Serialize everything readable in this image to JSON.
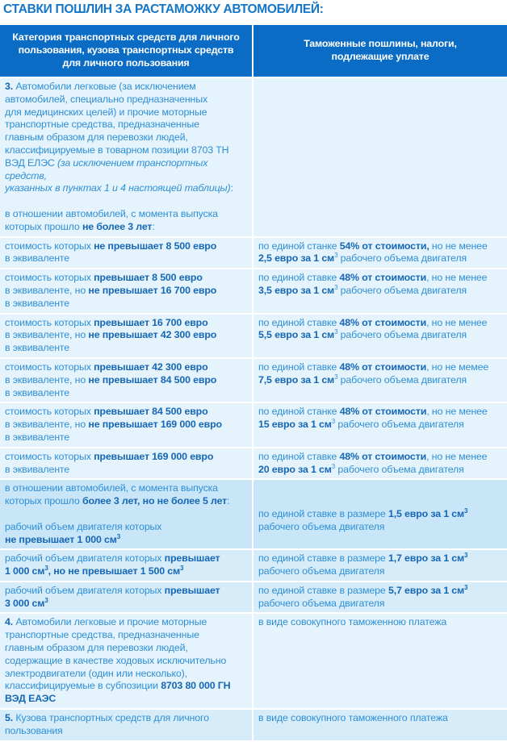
{
  "title": "СТАВКИ ПОШЛИН ЗА РАСТАМОЖКУ АВТОМОБИЛЕЙ:",
  "colors": {
    "header_bg": "#0b6cc5",
    "text": "#2f8fd6",
    "bold_text": "#1667b5",
    "row_light": "#e4f3fc",
    "row_dark": "#c9e6f8"
  },
  "header": {
    "col1": "Категория транспортных средств для личного\nпользования, кузова транспортных средств\nдля личного пользования",
    "col2": "Таможенные пошлины, налоги,\nподлежащие уплате"
  },
  "rows": [
    {
      "shade": "light",
      "left": [
        {
          "t": "3.",
          "s": "b"
        },
        {
          "t": " Автомобили легковые (за исключением\nавтомобилей, специально предназначенных\nдля медицинских целей) и прочие моторные\nтранспортные средства, предназначенные\nглавным образом для перевозки людей,\nклассифицируемые в товарном позиции 8703 ТН\nВЭД ЕЛЭС "
        },
        {
          "t": "(за исключением транспортных средств,\nуказанных в пунктах 1 и 4 настоящей таблицы)",
          "s": "i"
        },
        {
          "t": ":\n\nв отношении автомобилей, с момента выпуска\nкоторых прошло "
        },
        {
          "t": "не более 3 лет",
          "s": "b"
        },
        {
          "t": ":"
        }
      ],
      "right": []
    },
    {
      "shade": "light",
      "left": [
        {
          "t": "стоимость которых "
        },
        {
          "t": "не превышает 8 500 евро",
          "s": "b"
        },
        {
          "t": "\nв эквиваленте"
        }
      ],
      "right": [
        {
          "t": "по единой станке "
        },
        {
          "t": "54% от стоимости,",
          "s": "b"
        },
        {
          "t": " но не менее\n"
        },
        {
          "t": "2,5 евро за 1 см",
          "s": "b"
        },
        {
          "t": "3",
          "s": "sup"
        },
        {
          "t": " рабочего объема двигателя"
        }
      ]
    },
    {
      "shade": "light",
      "left": [
        {
          "t": "стоимость которых "
        },
        {
          "t": "превышает 8 500 евро",
          "s": "b"
        },
        {
          "t": "\nв эквиваленте, но "
        },
        {
          "t": "не превышает 16 700 евро",
          "s": "b"
        },
        {
          "t": "\nв эквиваленте"
        }
      ],
      "right": [
        {
          "t": "по единой ставке "
        },
        {
          "t": "48% от стоимости",
          "s": "b"
        },
        {
          "t": ", но не менее\n"
        },
        {
          "t": "3,5 евро за 1 см",
          "s": "b"
        },
        {
          "t": "3",
          "s": "sup"
        },
        {
          "t": " рабочего объема двигателя"
        }
      ]
    },
    {
      "shade": "light",
      "left": [
        {
          "t": "стоимость которых "
        },
        {
          "t": "превышает 16 700 евро",
          "s": "b"
        },
        {
          "t": "\nв эквиваленте, но "
        },
        {
          "t": "не превышает 42 300 евро",
          "s": "b"
        },
        {
          "t": "\nв эквиваленте"
        }
      ],
      "right": [
        {
          "t": "по единой ставке "
        },
        {
          "t": "48% от стоимости",
          "s": "b"
        },
        {
          "t": ", но не менее\n"
        },
        {
          "t": "5,5 евро за 1 см",
          "s": "b"
        },
        {
          "t": "3",
          "s": "sup"
        },
        {
          "t": " рабочего объема двигателя"
        }
      ]
    },
    {
      "shade": "light",
      "left": [
        {
          "t": "стоимость которых "
        },
        {
          "t": "превышает 42 300 евро",
          "s": "b"
        },
        {
          "t": "\nв эквиваленте, но "
        },
        {
          "t": "не превышает 84 500 евро",
          "s": "b"
        },
        {
          "t": "\nв эквиваленте"
        }
      ],
      "right": [
        {
          "t": "по единой ставке "
        },
        {
          "t": "48% от стоимости",
          "s": "b"
        },
        {
          "t": ", но не мемее\n"
        },
        {
          "t": "7,5 евро за 1 см",
          "s": "b"
        },
        {
          "t": "3",
          "s": "sup"
        },
        {
          "t": " рабочего объема двигателя"
        }
      ]
    },
    {
      "shade": "light",
      "left": [
        {
          "t": "стоимость которых "
        },
        {
          "t": "превышает 84 500 евро",
          "s": "b"
        },
        {
          "t": "\nв эквиваленте, но "
        },
        {
          "t": "не превышает 169 000 евро",
          "s": "b"
        },
        {
          "t": "\nв эквиваленте"
        }
      ],
      "right": [
        {
          "t": "по единой станке "
        },
        {
          "t": "48% от стоимости",
          "s": "b"
        },
        {
          "t": ", но не менее\n"
        },
        {
          "t": "15 евро за 1 см",
          "s": "b"
        },
        {
          "t": "3",
          "s": "sup"
        },
        {
          "t": " рабочего объема двигателя"
        }
      ]
    },
    {
      "shade": "light",
      "left": [
        {
          "t": "стоимость которых "
        },
        {
          "t": "превышает 169 000 евро",
          "s": "b"
        },
        {
          "t": "\nв эквиваленте"
        }
      ],
      "right": [
        {
          "t": "по единой ставке "
        },
        {
          "t": "48% от стоимости",
          "s": "b"
        },
        {
          "t": ", но не менее\n"
        },
        {
          "t": "20 евро за 1 см",
          "s": "b"
        },
        {
          "t": "3",
          "s": "sup"
        },
        {
          "t": " рабочего объема двигателя"
        }
      ]
    },
    {
      "shade": "dark",
      "left": [
        {
          "t": "в отношении автомобилей, с момента выпуска\nкоторых прошло "
        },
        {
          "t": "более 3 лет, но не более 5 лет",
          "s": "b"
        },
        {
          "t": ":\n\nрабочий объем двигателя которых\n"
        },
        {
          "t": "не превышает 1 000 см",
          "s": "b"
        },
        {
          "t": "3",
          "s": "bsup"
        }
      ],
      "right": [
        {
          "t": "\n\nпо единой ставке в размере "
        },
        {
          "t": "1,5 евро за 1 см",
          "s": "b"
        },
        {
          "t": "3",
          "s": "bsup"
        },
        {
          "t": "\nрабочего объема двигателя"
        }
      ]
    },
    {
      "shade": "mid",
      "left": [
        {
          "t": "рабочий объем двигателя которых "
        },
        {
          "t": "превышает\n1 000 см",
          "s": "b"
        },
        {
          "t": "3",
          "s": "bsup"
        },
        {
          "t": ", но не превышает 1 500 см",
          "s": "b"
        },
        {
          "t": "3",
          "s": "bsup"
        }
      ],
      "right": [
        {
          "t": "по единой ставке в размере "
        },
        {
          "t": "1,7 евро за 1 см",
          "s": "b"
        },
        {
          "t": "3",
          "s": "bsup"
        },
        {
          "t": "\nрабочего объема двигателя"
        }
      ]
    },
    {
      "shade": "mid",
      "left": [
        {
          "t": "рабочий объем двигателя которых "
        },
        {
          "t": "превышает\n3 000 см",
          "s": "b"
        },
        {
          "t": "3",
          "s": "bsup"
        }
      ],
      "right": [
        {
          "t": "по единой ставке в размере "
        },
        {
          "t": "5,7 евро за 1 см",
          "s": "b"
        },
        {
          "t": "3",
          "s": "bsup"
        },
        {
          "t": "\nрабочего объема двигателя"
        }
      ]
    },
    {
      "shade": "light",
      "left": [
        {
          "t": "4.",
          "s": "b"
        },
        {
          "t": " Автомобили легковые и прочие моторные\nтранспортные средства, предназначенные\nглавным образом для перевозки людей,\nсодержащие в качестве ходовых исключительно\nэлектродвигатели (один или несколько),\nклассифицируемые в субпозиции "
        },
        {
          "t": "8703 80 000 ГН\nВЭД ЕАЭС",
          "s": "b"
        }
      ],
      "right": [
        {
          "t": "в виде совокупного таможенною платежа"
        }
      ]
    },
    {
      "shade": "mid",
      "left": [
        {
          "t": "5.",
          "s": "b"
        },
        {
          "t": " Кузова транспортных средств для личного\nпользования"
        }
      ],
      "right": [
        {
          "t": "в виде совокупного таможенного платежа"
        }
      ]
    }
  ]
}
